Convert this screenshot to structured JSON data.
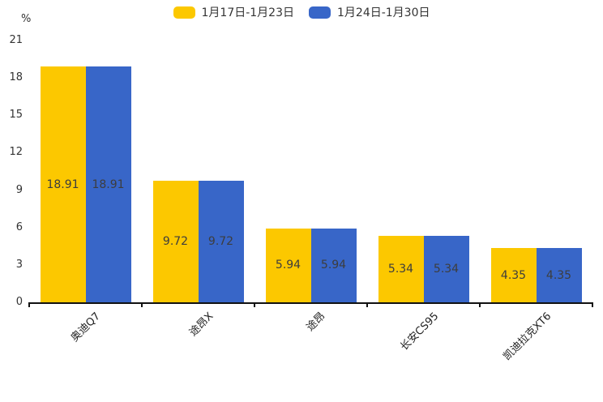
{
  "chart_data": {
    "type": "bar",
    "title": "",
    "unit_label": "%",
    "categories": [
      "奥迪Q7",
      "途昂X",
      "途昂",
      "长安CS95",
      "凯迪拉克XT6"
    ],
    "series": [
      {
        "name": "1月17日-1月23日",
        "color": "#FCC800",
        "values": [
          18.91,
          9.72,
          5.94,
          5.34,
          4.35
        ]
      },
      {
        "name": "1月24日-1月30日",
        "color": "#3866C8",
        "values": [
          18.91,
          9.72,
          5.94,
          5.34,
          4.35
        ]
      }
    ],
    "y_ticks": [
      0,
      3,
      6,
      9,
      12,
      15,
      18,
      21
    ],
    "ylim": [
      0,
      21
    ],
    "grid": false,
    "legend_position": "top",
    "value_label_position": "inside-middle",
    "x_label_rotation_deg": 45
  },
  "colors": {
    "background": "#ffffff",
    "axis": "#111111",
    "tick_text": "#333333",
    "value_text": "#3d3d3d"
  }
}
